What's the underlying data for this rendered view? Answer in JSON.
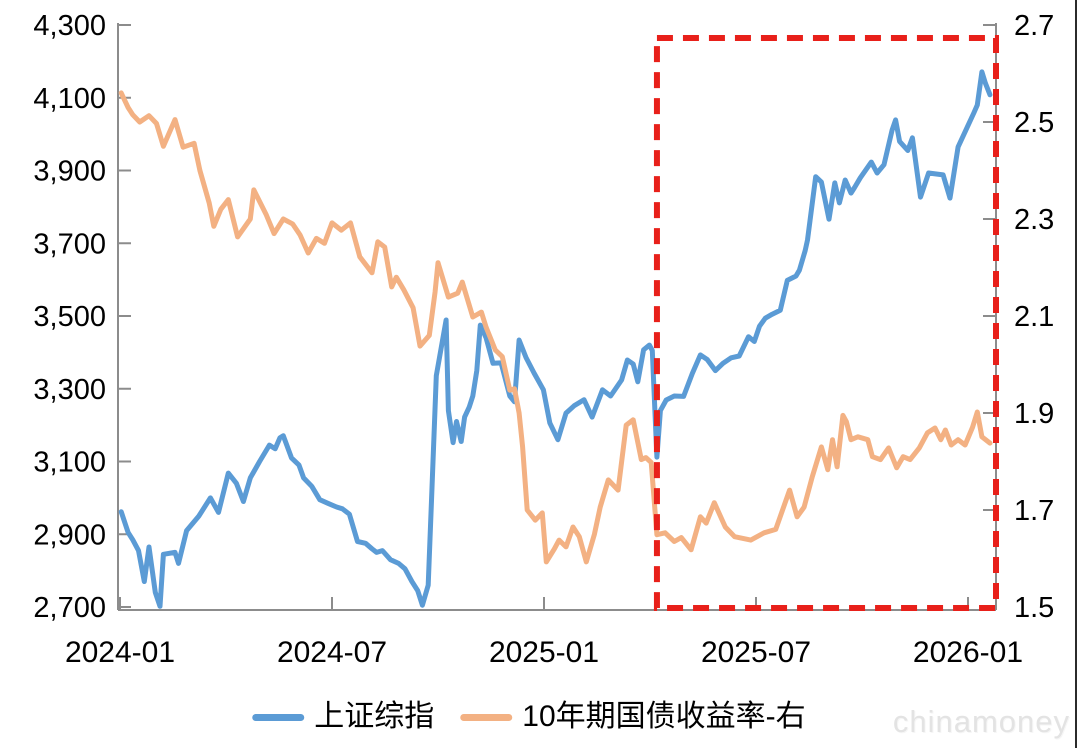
{
  "chart_data": {
    "type": "line",
    "title": "",
    "grid": false,
    "x_ticks": [
      "2024-01",
      "2024-07",
      "2025-01",
      "2025-07",
      "2026-01"
    ],
    "left_axis": {
      "ticks": [
        "4,300",
        "4,100",
        "3,900",
        "3,700",
        "3,500",
        "3,300",
        "3,100",
        "2,900",
        "2,700"
      ],
      "min": 2700,
      "max": 4300
    },
    "right_axis": {
      "ticks": [
        "2.7",
        "2.5",
        "2.3",
        "2.1",
        "1.9",
        "1.7",
        "1.5"
      ],
      "min": 1.5,
      "max": 2.7
    },
    "series": [
      {
        "name": "上证综指",
        "axis": "left",
        "color": "#5B9BD5",
        "points": [
          [
            "2024-01-02",
            2962
          ],
          [
            "2024-01-08",
            2905
          ],
          [
            "2024-01-12",
            2885
          ],
          [
            "2024-01-17",
            2855
          ],
          [
            "2024-01-22",
            2770
          ],
          [
            "2024-01-26",
            2865
          ],
          [
            "2024-02-01",
            2740
          ],
          [
            "2024-02-05",
            2702
          ],
          [
            "2024-02-08",
            2845
          ],
          [
            "2024-02-18",
            2850
          ],
          [
            "2024-02-21",
            2820
          ],
          [
            "2024-02-28",
            2910
          ],
          [
            "2024-03-08",
            2950
          ],
          [
            "2024-03-18",
            3000
          ],
          [
            "2024-03-25",
            2960
          ],
          [
            "2024-04-03",
            3068
          ],
          [
            "2024-04-10",
            3040
          ],
          [
            "2024-04-16",
            2990
          ],
          [
            "2024-04-22",
            3055
          ],
          [
            "2024-04-30",
            3100
          ],
          [
            "2024-05-08",
            3145
          ],
          [
            "2024-05-13",
            3135
          ],
          [
            "2024-05-17",
            3165
          ],
          [
            "2024-05-20",
            3171
          ],
          [
            "2024-05-27",
            3110
          ],
          [
            "2024-06-03",
            3090
          ],
          [
            "2024-06-07",
            3055
          ],
          [
            "2024-06-14",
            3032
          ],
          [
            "2024-06-21",
            2995
          ],
          [
            "2024-06-28",
            2985
          ],
          [
            "2024-07-05",
            2975
          ],
          [
            "2024-07-10",
            2970
          ],
          [
            "2024-07-16",
            2955
          ],
          [
            "2024-07-23",
            2880
          ],
          [
            "2024-07-30",
            2875
          ],
          [
            "2024-08-05",
            2860
          ],
          [
            "2024-08-09",
            2850
          ],
          [
            "2024-08-14",
            2855
          ],
          [
            "2024-08-21",
            2830
          ],
          [
            "2024-08-28",
            2820
          ],
          [
            "2024-09-03",
            2805
          ],
          [
            "2024-09-09",
            2770
          ],
          [
            "2024-09-14",
            2745
          ],
          [
            "2024-09-18",
            2705
          ],
          [
            "2024-09-23",
            2760
          ],
          [
            "2024-09-26",
            3000
          ],
          [
            "2024-09-30",
            3336
          ],
          [
            "2024-10-08",
            3489
          ],
          [
            "2024-10-10",
            3240
          ],
          [
            "2024-10-14",
            3152
          ],
          [
            "2024-10-17",
            3210
          ],
          [
            "2024-10-21",
            3155
          ],
          [
            "2024-10-24",
            3222
          ],
          [
            "2024-10-28",
            3250
          ],
          [
            "2024-10-31",
            3280
          ],
          [
            "2024-11-04",
            3350
          ],
          [
            "2024-11-07",
            3475
          ],
          [
            "2024-11-12",
            3440
          ],
          [
            "2024-11-18",
            3370
          ],
          [
            "2024-11-25",
            3371
          ],
          [
            "2024-12-02",
            3280
          ],
          [
            "2024-12-06",
            3264
          ],
          [
            "2024-12-10",
            3434
          ],
          [
            "2024-12-16",
            3386
          ],
          [
            "2024-12-23",
            3343
          ],
          [
            "2024-12-31",
            3297
          ],
          [
            "2025-01-06",
            3206
          ],
          [
            "2025-01-13",
            3160
          ],
          [
            "2025-01-20",
            3233
          ],
          [
            "2025-01-27",
            3253
          ],
          [
            "2025-02-05",
            3270
          ],
          [
            "2025-02-12",
            3222
          ],
          [
            "2025-02-21",
            3297
          ],
          [
            "2025-02-28",
            3280
          ],
          [
            "2025-03-07",
            3324
          ],
          [
            "2025-03-12",
            3379
          ],
          [
            "2025-03-17",
            3368
          ],
          [
            "2025-03-21",
            3319
          ],
          [
            "2025-03-26",
            3407
          ],
          [
            "2025-03-31",
            3420
          ],
          [
            "2025-04-03",
            3405
          ],
          [
            "2025-04-07",
            3112
          ],
          [
            "2025-04-10",
            3240
          ],
          [
            "2025-04-15",
            3269
          ],
          [
            "2025-04-22",
            3280
          ],
          [
            "2025-04-30",
            3279
          ],
          [
            "2025-05-07",
            3342
          ],
          [
            "2025-05-14",
            3393
          ],
          [
            "2025-05-20",
            3380
          ],
          [
            "2025-05-27",
            3350
          ],
          [
            "2025-06-03",
            3370
          ],
          [
            "2025-06-10",
            3385
          ],
          [
            "2025-06-17",
            3390
          ],
          [
            "2025-06-25",
            3443
          ],
          [
            "2025-06-30",
            3430
          ],
          [
            "2025-07-04",
            3472
          ],
          [
            "2025-07-09",
            3494
          ],
          [
            "2025-07-15",
            3505
          ],
          [
            "2025-07-22",
            3516
          ],
          [
            "2025-07-28",
            3598
          ],
          [
            "2025-08-05",
            3610
          ],
          [
            "2025-08-08",
            3626
          ],
          [
            "2025-08-13",
            3680
          ],
          [
            "2025-08-15",
            3709
          ],
          [
            "2025-08-22",
            3883
          ],
          [
            "2025-08-27",
            3868
          ],
          [
            "2025-09-03",
            3766
          ],
          [
            "2025-09-08",
            3866
          ],
          [
            "2025-09-12",
            3811
          ],
          [
            "2025-09-17",
            3874
          ],
          [
            "2025-09-22",
            3838
          ],
          [
            "2025-09-25",
            3853
          ],
          [
            "2025-09-30",
            3880
          ],
          [
            "2025-10-09",
            3923
          ],
          [
            "2025-10-14",
            3893
          ],
          [
            "2025-10-20",
            3916
          ],
          [
            "2025-10-27",
            4011
          ],
          [
            "2025-10-30",
            4039
          ],
          [
            "2025-11-03",
            3980
          ],
          [
            "2025-11-10",
            3955
          ],
          [
            "2025-11-14",
            3990
          ],
          [
            "2025-11-21",
            3827
          ],
          [
            "2025-11-28",
            3893
          ],
          [
            "2025-12-05",
            3890
          ],
          [
            "2025-12-10",
            3888
          ],
          [
            "2025-12-16",
            3824
          ],
          [
            "2025-12-23",
            3965
          ],
          [
            "2025-12-31",
            4020
          ],
          [
            "2026-01-06",
            4058
          ],
          [
            "2026-01-09",
            4080
          ],
          [
            "2026-01-13",
            4171
          ],
          [
            "2026-01-16",
            4140
          ],
          [
            "2026-01-20",
            4108
          ]
        ]
      },
      {
        "name": "10年期国债收益率-右",
        "axis": "right",
        "color": "#F3B183",
        "points": [
          [
            "2024-01-02",
            2.56
          ],
          [
            "2024-01-08",
            2.53
          ],
          [
            "2024-01-12",
            2.515
          ],
          [
            "2024-01-18",
            2.5
          ],
          [
            "2024-01-26",
            2.513
          ],
          [
            "2024-02-02",
            2.497
          ],
          [
            "2024-02-08",
            2.45
          ],
          [
            "2024-02-18",
            2.505
          ],
          [
            "2024-02-25",
            2.448
          ],
          [
            "2024-03-04",
            2.456
          ],
          [
            "2024-03-09",
            2.4
          ],
          [
            "2024-03-17",
            2.333
          ],
          [
            "2024-03-21",
            2.285
          ],
          [
            "2024-03-27",
            2.32
          ],
          [
            "2024-04-03",
            2.34
          ],
          [
            "2024-04-11",
            2.263
          ],
          [
            "2024-04-22",
            2.3
          ],
          [
            "2024-04-25",
            2.36
          ],
          [
            "2024-05-05",
            2.31
          ],
          [
            "2024-05-12",
            2.27
          ],
          [
            "2024-05-20",
            2.3
          ],
          [
            "2024-05-28",
            2.29
          ],
          [
            "2024-06-04",
            2.267
          ],
          [
            "2024-06-11",
            2.23
          ],
          [
            "2024-06-18",
            2.26
          ],
          [
            "2024-06-25",
            2.25
          ],
          [
            "2024-07-01",
            2.292
          ],
          [
            "2024-07-09",
            2.277
          ],
          [
            "2024-07-17",
            2.292
          ],
          [
            "2024-07-25",
            2.222
          ],
          [
            "2024-08-05",
            2.189
          ],
          [
            "2024-08-10",
            2.253
          ],
          [
            "2024-08-16",
            2.242
          ],
          [
            "2024-08-22",
            2.16
          ],
          [
            "2024-08-26",
            2.18
          ],
          [
            "2024-09-02",
            2.154
          ],
          [
            "2024-09-10",
            2.117
          ],
          [
            "2024-09-16",
            2.038
          ],
          [
            "2024-09-24",
            2.06
          ],
          [
            "2024-09-29",
            2.15
          ],
          [
            "2024-10-01",
            2.21
          ],
          [
            "2024-10-10",
            2.139
          ],
          [
            "2024-10-18",
            2.147
          ],
          [
            "2024-10-22",
            2.17
          ],
          [
            "2024-10-31",
            2.098
          ],
          [
            "2024-11-08",
            2.108
          ],
          [
            "2024-11-12",
            2.077
          ],
          [
            "2024-11-20",
            2.03
          ],
          [
            "2024-11-26",
            2.016
          ],
          [
            "2024-12-02",
            1.947
          ],
          [
            "2024-12-06",
            1.95
          ],
          [
            "2024-12-10",
            1.9
          ],
          [
            "2024-12-13",
            1.83
          ],
          [
            "2024-12-17",
            1.7
          ],
          [
            "2024-12-24",
            1.679
          ],
          [
            "2024-12-30",
            1.694
          ],
          [
            "2025-01-03",
            1.593
          ],
          [
            "2025-01-10",
            1.62
          ],
          [
            "2025-01-14",
            1.638
          ],
          [
            "2025-01-20",
            1.624
          ],
          [
            "2025-01-26",
            1.665
          ],
          [
            "2025-02-01",
            1.645
          ],
          [
            "2025-02-07",
            1.593
          ],
          [
            "2025-02-14",
            1.65
          ],
          [
            "2025-02-19",
            1.706
          ],
          [
            "2025-02-26",
            1.762
          ],
          [
            "2025-03-04",
            1.741
          ],
          [
            "2025-03-11",
            1.875
          ],
          [
            "2025-03-17",
            1.886
          ],
          [
            "2025-03-24",
            1.804
          ],
          [
            "2025-03-28",
            1.808
          ],
          [
            "2025-04-02",
            1.798
          ],
          [
            "2025-04-07",
            1.649
          ],
          [
            "2025-04-14",
            1.653
          ],
          [
            "2025-04-22",
            1.635
          ],
          [
            "2025-04-28",
            1.643
          ],
          [
            "2025-05-06",
            1.618
          ],
          [
            "2025-05-14",
            1.686
          ],
          [
            "2025-05-19",
            1.673
          ],
          [
            "2025-05-26",
            1.715
          ],
          [
            "2025-06-05",
            1.665
          ],
          [
            "2025-06-13",
            1.645
          ],
          [
            "2025-06-27",
            1.638
          ],
          [
            "2025-07-08",
            1.653
          ],
          [
            "2025-07-18",
            1.66
          ],
          [
            "2025-07-30",
            1.741
          ],
          [
            "2025-08-06",
            1.686
          ],
          [
            "2025-08-12",
            1.706
          ],
          [
            "2025-08-19",
            1.768
          ],
          [
            "2025-08-27",
            1.83
          ],
          [
            "2025-09-02",
            1.783
          ],
          [
            "2025-09-06",
            1.845
          ],
          [
            "2025-09-10",
            1.789
          ],
          [
            "2025-09-15",
            1.895
          ],
          [
            "2025-09-18",
            1.882
          ],
          [
            "2025-09-22",
            1.845
          ],
          [
            "2025-09-28",
            1.851
          ],
          [
            "2025-10-06",
            1.845
          ],
          [
            "2025-10-10",
            1.81
          ],
          [
            "2025-10-17",
            1.804
          ],
          [
            "2025-10-24",
            1.828
          ],
          [
            "2025-10-31",
            1.787
          ],
          [
            "2025-11-06",
            1.81
          ],
          [
            "2025-11-12",
            1.804
          ],
          [
            "2025-11-20",
            1.828
          ],
          [
            "2025-11-27",
            1.859
          ],
          [
            "2025-12-03",
            1.869
          ],
          [
            "2025-12-08",
            1.845
          ],
          [
            "2025-12-12",
            1.865
          ],
          [
            "2025-12-17",
            1.834
          ],
          [
            "2025-12-23",
            1.845
          ],
          [
            "2025-12-29",
            1.834
          ],
          [
            "2026-01-05",
            1.871
          ],
          [
            "2026-01-09",
            1.902
          ],
          [
            "2026-01-13",
            1.851
          ],
          [
            "2026-01-20",
            1.838
          ]
        ]
      }
    ],
    "highlight_box": {
      "style": "dashed",
      "color": "#E8201A",
      "date_start": "2025-04-07",
      "date_end": "2026-01-26",
      "extent": "full-height"
    }
  },
  "legend": {
    "items": [
      {
        "label": "上证综指",
        "color": "#5B9BD5"
      },
      {
        "label": "10年期国债收益率-右",
        "color": "#F3B183"
      }
    ]
  },
  "watermark": {
    "text": "chinamoney"
  },
  "colors": {
    "line_blue": "#5B9BD5",
    "line_orange": "#F3B183",
    "highlight_red": "#E8201A",
    "axis": "#8C8C8C",
    "tick_text": "#000000",
    "watermark": "#E3E3E3"
  }
}
